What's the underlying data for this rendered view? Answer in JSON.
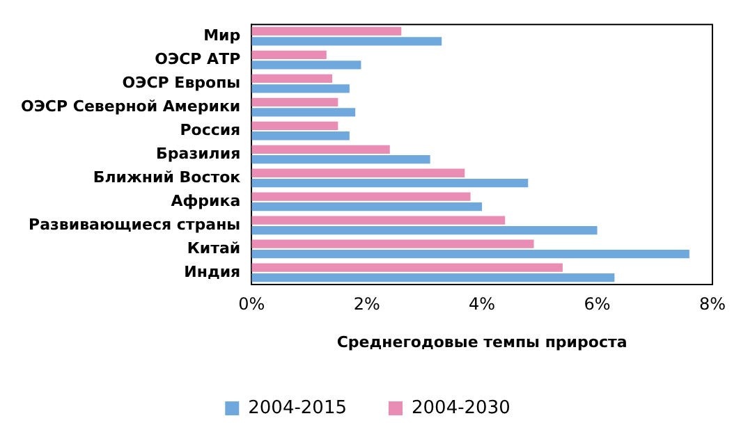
{
  "chart_data": {
    "type": "bar",
    "orientation": "horizontal",
    "xlabel": "Среднегодовые темпы прироста",
    "categories": [
      "Мир",
      "ОЭСР АТР",
      "ОЭСР Европы",
      "ОЭСР Северной Америки",
      "Россия",
      "Бразилия",
      "Ближний Восток",
      "Африка",
      "Развивающиеся страны",
      "Китай",
      "Индия"
    ],
    "series": [
      {
        "name": "2004-2015",
        "color": "#6fa8dc",
        "values": [
          3.3,
          1.9,
          1.7,
          1.8,
          1.7,
          3.1,
          4.8,
          4.0,
          6.0,
          7.6,
          6.3
        ]
      },
      {
        "name": "2004-2030",
        "color": "#e98db5",
        "values": [
          2.6,
          1.3,
          1.4,
          1.5,
          1.5,
          2.4,
          3.7,
          3.8,
          4.4,
          4.9,
          5.4
        ]
      }
    ],
    "xlim": [
      0,
      8
    ],
    "xticks": [
      {
        "value": 0,
        "label": "0%"
      },
      {
        "value": 2,
        "label": "2%"
      },
      {
        "value": 4,
        "label": "4%"
      },
      {
        "value": 6,
        "label": "6%"
      },
      {
        "value": 8,
        "label": "8%"
      }
    ],
    "grid": false,
    "legend": "bottom"
  }
}
